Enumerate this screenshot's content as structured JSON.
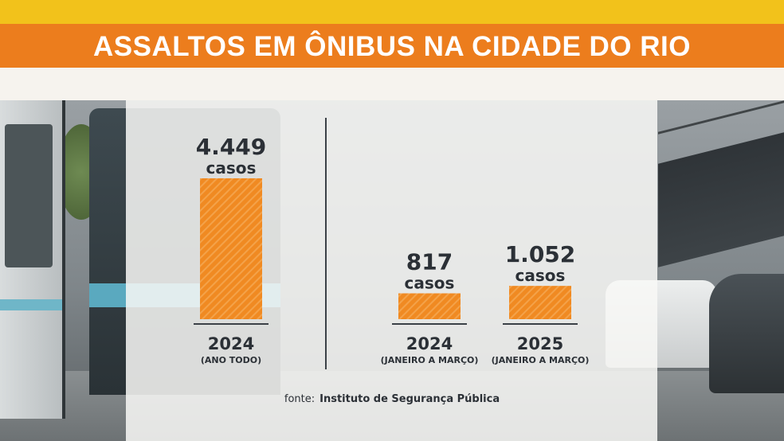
{
  "title": "ASSALTOS EM ÔNIBUS NA CIDADE DO RIO",
  "colors": {
    "yellow": "#f2c21b",
    "orange": "#ec7d1d",
    "bar": "#f08a22",
    "text": "#2b3036"
  },
  "chart_data": {
    "type": "bar",
    "title": "ASSALTOS EM ÔNIBUS NA CIDADE DO RIO",
    "unit_label": "casos",
    "bars": [
      {
        "year": "2024",
        "period": "(ANO TODO)",
        "value": 4449,
        "value_label": "4.449",
        "unit": "casos"
      },
      {
        "year": "2024",
        "period": "(JANEIRO A MARÇO)",
        "value": 817,
        "value_label": "817",
        "unit": "casos"
      },
      {
        "year": "2025",
        "period": "(JANEIRO A MARÇO)",
        "value": 1052,
        "value_label": "1.052",
        "unit": "casos"
      }
    ],
    "grid": false,
    "legend": "none"
  },
  "source": {
    "label": "fonte:",
    "value": "Instituto de Segurança Pública"
  }
}
